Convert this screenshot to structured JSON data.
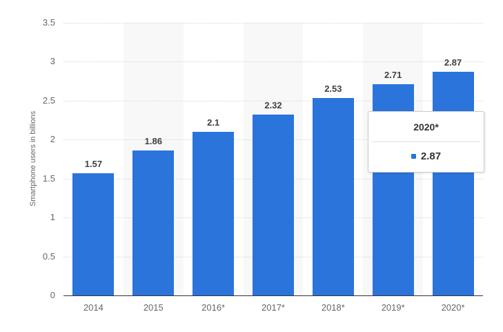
{
  "chart_data": {
    "type": "bar",
    "title": "",
    "xlabel": "",
    "ylabel": "Smartphone users in billions",
    "categories": [
      "2014",
      "2015",
      "2016*",
      "2017*",
      "2018*",
      "2019*",
      "2020*"
    ],
    "values": [
      1.57,
      1.86,
      2.1,
      2.32,
      2.53,
      2.71,
      2.87
    ],
    "data_labels": [
      "1.57",
      "1.86",
      "2.1",
      "2.32",
      "2.53",
      "2.71",
      "2.87"
    ],
    "ylim": [
      0,
      3.5
    ],
    "yticks": [
      0,
      0.5,
      1,
      1.5,
      2,
      2.5,
      3,
      3.5
    ],
    "ytick_labels": [
      "0",
      "0.5",
      "1",
      "1.5",
      "2",
      "2.5",
      "3",
      "3.5"
    ],
    "grid": "horizontal-dotted",
    "legend": "none",
    "plot_bands_on_categories": [
      "2015",
      "2017*",
      "2019*"
    ]
  },
  "tooltip": {
    "header": "2020*",
    "value": "2.87"
  },
  "colors": {
    "bar": "#2a74dc",
    "band": "#f8f8f8",
    "grid": "#d6d6d6",
    "axis_line": "#333333",
    "tick_label": "#666666",
    "data_label": "#404040",
    "tooltip_border": "#cccccc",
    "tooltip_divider": "#e0e0e0",
    "tooltip_text": "#333333"
  }
}
